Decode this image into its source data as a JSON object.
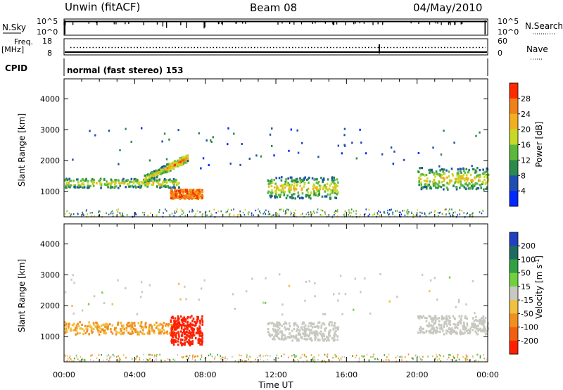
{
  "header": {
    "station": "Unwin (fitACF)",
    "beam": "Beam 08",
    "date": "04/May/2010"
  },
  "strip_panels": {
    "nsky_label": "N.Sky",
    "nsky_ticks": [
      "10^5",
      "10^0"
    ],
    "nsearch_label": "N.Search",
    "nsearch_ticks": [
      "10^5",
      "10^0"
    ],
    "freq_label": "Freq.",
    "freq_unit": "[MHz]",
    "freq_ticks": [
      "18",
      "8"
    ],
    "nave_label": "Nave",
    "nave_ticks": [
      "60",
      "0"
    ],
    "cpid_label": "CPID",
    "cpid_text": "normal (fast stereo) 153"
  },
  "chart_data": [
    {
      "type": "heatmap",
      "name": "power",
      "ylabel": "Slant Range [km]",
      "xlabel": "Time UT",
      "x_ticks": [
        "00:00",
        "04:00",
        "08:00",
        "12:00",
        "16:00",
        "20:00",
        "00:00"
      ],
      "x_range_hours": [
        0,
        24
      ],
      "y_ticks": [
        1000,
        2000,
        3000,
        4000
      ],
      "ylim": [
        180,
        4650
      ],
      "colorbar": {
        "label": "Power [dB]",
        "ticks": [
          4,
          8,
          12,
          16,
          20,
          24,
          28
        ],
        "range": [
          0,
          32
        ],
        "colors": [
          "#0028ff",
          "#1e4fb0",
          "#2a8a4a",
          "#5cb83c",
          "#c8d826",
          "#f0b020",
          "#f08018",
          "#ff2a00"
        ]
      },
      "features": [
        {
          "label": "main band",
          "t_start": 0,
          "t_end": 6.5,
          "range_start": 1150,
          "range_end": 1450
        },
        {
          "label": "rising band",
          "t_start": 4.5,
          "t_end": 7.0,
          "range_start": 1500,
          "range_end": 2100
        },
        {
          "label": "intense patch",
          "t_start": 6.0,
          "t_end": 7.8,
          "range_start": 800,
          "range_end": 1100
        },
        {
          "label": "midday band",
          "t_start": 11.5,
          "t_end": 15.5,
          "range_start": 800,
          "range_end": 1500
        },
        {
          "label": "evening band",
          "t_start": 20.0,
          "t_end": 24.0,
          "range_start": 1100,
          "range_end": 1800
        }
      ]
    },
    {
      "type": "heatmap",
      "name": "velocity",
      "ylabel": "Slant Range [km]",
      "xlabel": "Time UT",
      "x_ticks": [
        "00:00",
        "04:00",
        "08:00",
        "12:00",
        "16:00",
        "20:00",
        "00:00"
      ],
      "x_range_hours": [
        0,
        24
      ],
      "y_ticks": [
        1000,
        2000,
        3000,
        4000
      ],
      "ylim": [
        180,
        4650
      ],
      "colorbar": {
        "label": "Velocity [m s^-1]",
        "ticks": [
          200,
          100,
          50,
          15,
          -15,
          -50,
          -100,
          -200
        ],
        "colors": [
          "#2040c0",
          "#1e6a60",
          "#30a040",
          "#70d040",
          "#c8c8c0",
          "#f0c040",
          "#f09020",
          "#f06010",
          "#ff2000"
        ]
      },
      "features": [
        {
          "label": "main band",
          "t_start": 0,
          "t_end": 6.5,
          "range_start": 1100,
          "range_end": 1500,
          "velocity": -30
        },
        {
          "label": "intense patch",
          "t_start": 6.0,
          "t_end": 7.8,
          "range_start": 750,
          "range_end": 1700,
          "velocity": -220
        },
        {
          "label": "midday band",
          "t_start": 11.5,
          "t_end": 15.5,
          "range_start": 900,
          "range_end": 1500,
          "velocity": 0
        },
        {
          "label": "evening band",
          "t_start": 20.0,
          "t_end": 24.0,
          "range_start": 1100,
          "range_end": 1700,
          "velocity": 0
        }
      ]
    }
  ]
}
